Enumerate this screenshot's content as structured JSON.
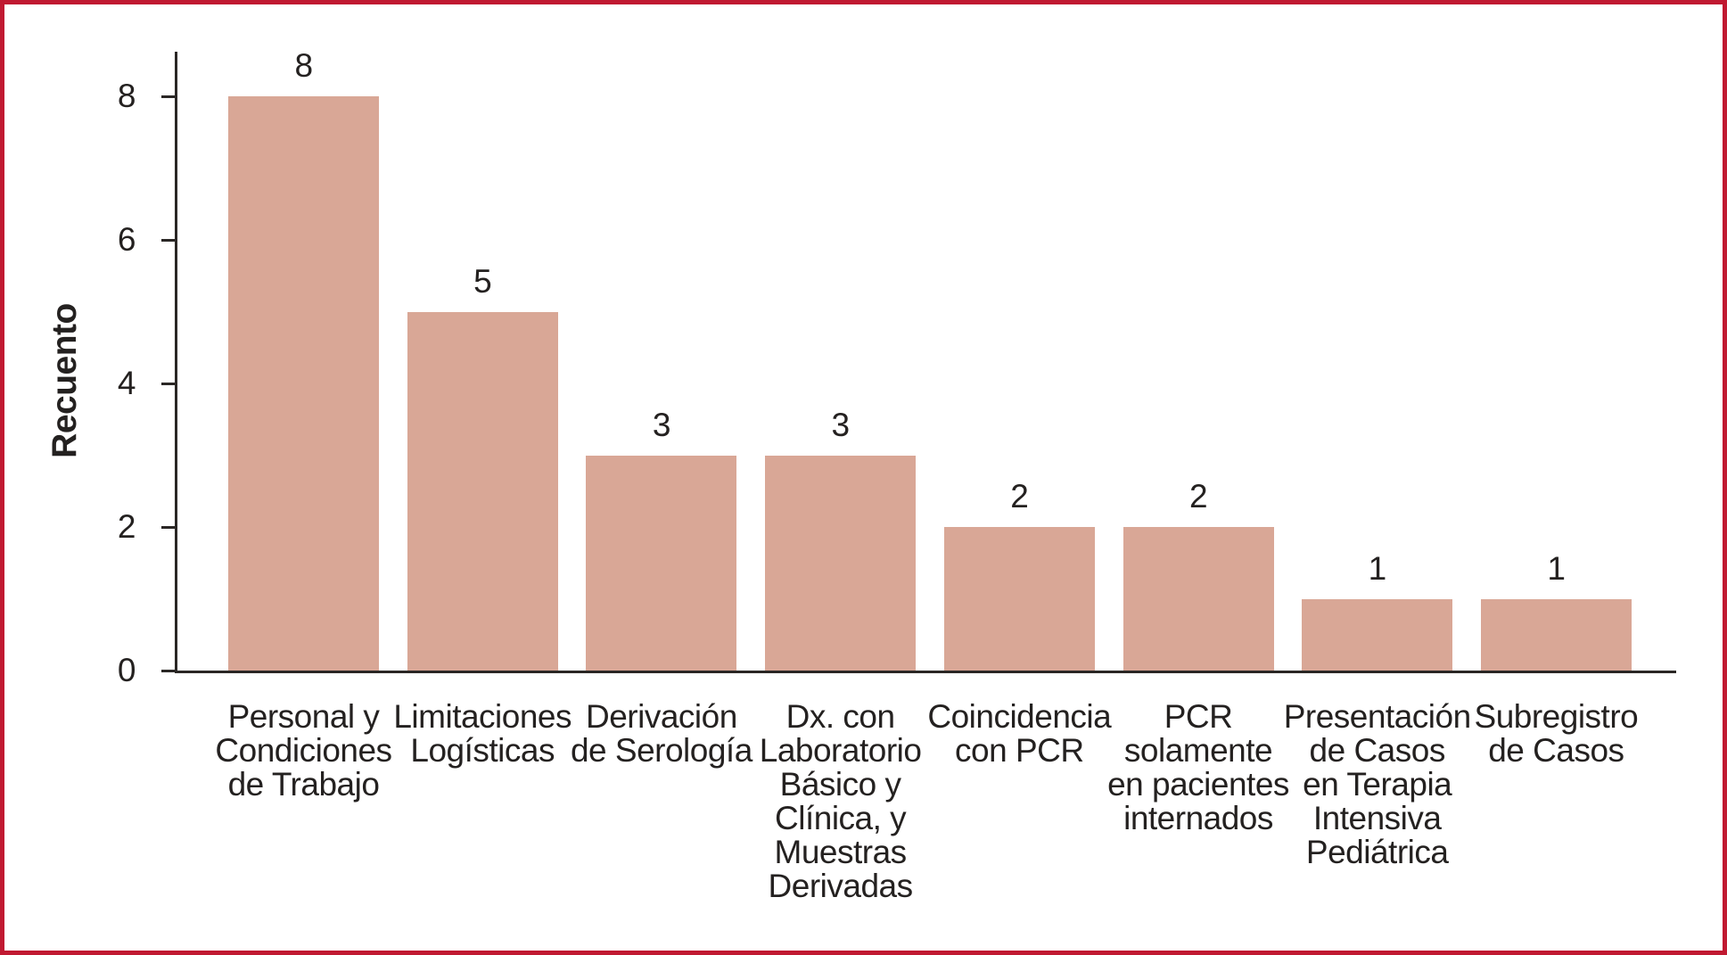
{
  "chart_data": {
    "type": "bar",
    "title": "",
    "ylabel": "Recuento",
    "xlabel": "",
    "categories": [
      [
        "Personal y",
        "Condiciones",
        "de Trabajo"
      ],
      [
        "Limitaciones",
        "Logísticas"
      ],
      [
        "Derivación",
        "de Serología"
      ],
      [
        "Dx. con",
        "Laboratorio",
        "Básico y",
        "Clínica, y",
        "Muestras",
        "Derivadas"
      ],
      [
        "Coincidencia",
        "con PCR"
      ],
      [
        "PCR",
        "solamente",
        "en pacientes",
        "internados"
      ],
      [
        "Presentación",
        "de Casos",
        "en Terapia",
        "Intensiva",
        "Pediátrica"
      ],
      [
        "Subregistro",
        "de Casos"
      ]
    ],
    "categories_text": [
      "Personal y Condiciones de Trabajo",
      "Limitaciones Logísticas",
      "Derivación de Serología",
      "Dx. con Laboratorio Básico y Clínica, y Muestras Derivadas",
      "Coincidencia con PCR",
      "PCR solamente en pacientes internados",
      "Presentación de Casos en Terapia Intensiva Pediátrica",
      "Subregistro de Casos"
    ],
    "values": [
      8,
      5,
      3,
      3,
      2,
      2,
      1,
      1
    ],
    "yticks": [
      0,
      2,
      4,
      6,
      8
    ],
    "ylim": [
      0,
      8.6
    ],
    "grid": false,
    "legend": "none",
    "colors": {
      "bar": "#D9A796",
      "frame_border": "#C01931",
      "axis": "#2A2725",
      "text": "#242120",
      "background": "#FFFFFF"
    }
  }
}
